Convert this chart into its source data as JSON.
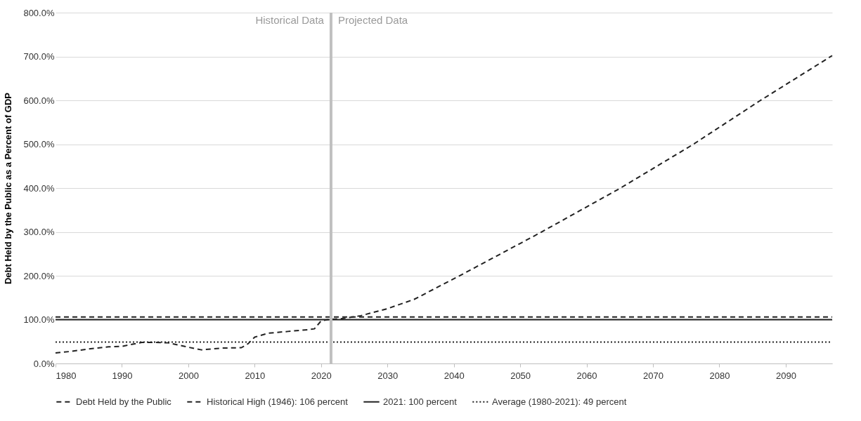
{
  "chart_data": {
    "type": "line",
    "ylabel": "Debt Held by the Public as a Percent of GDP",
    "xlim": [
      1980,
      2097
    ],
    "xticks": [
      1980,
      1990,
      2000,
      2010,
      2020,
      2030,
      2040,
      2050,
      2060,
      2070,
      2080,
      2090
    ],
    "ylim": [
      0,
      800
    ],
    "yticks": [
      {
        "value": 0,
        "label": "0.0%"
      },
      {
        "value": 100,
        "label": "100.0%"
      },
      {
        "value": 200,
        "label": "200.0%"
      },
      {
        "value": 300,
        "label": "300.0%"
      },
      {
        "value": 400,
        "label": "400.0%"
      },
      {
        "value": 500,
        "label": "500.0%"
      },
      {
        "value": 600,
        "label": "600.0%"
      },
      {
        "value": 700,
        "label": "700.0%"
      },
      {
        "value": 800,
        "label": "800.0%"
      }
    ],
    "grid": "y",
    "legend": "bottom",
    "series": [
      {
        "name": "Debt Held by the Public",
        "color": "#222222",
        "line_style": "dashed",
        "x": [
          1980,
          1982,
          1985,
          1988,
          1990,
          1993,
          1995,
          1997,
          2000,
          2002,
          2005,
          2008,
          2009,
          2010,
          2012,
          2015,
          2018,
          2019,
          2020,
          2021,
          2023,
          2026,
          2030,
          2034,
          2041,
          2053,
          2065,
          2076,
          2086,
          2097
        ],
        "values": [
          24,
          27,
          33,
          38,
          39,
          48,
          48,
          47,
          37,
          31,
          35,
          36,
          45,
          60,
          69,
          73,
          77,
          79,
          97,
          100,
          102,
          109,
          125,
          146,
          201,
          298,
          399,
          499,
          598,
          702
        ]
      },
      {
        "name": "Historical High (1946): 106 percent",
        "color": "#222222",
        "line_style": "dashed",
        "x": [
          1980,
          2097
        ],
        "values": [
          106,
          106
        ]
      },
      {
        "name": "2021: 100 percent",
        "color": "#222222",
        "line_style": "solid",
        "x": [
          1980,
          2097
        ],
        "values": [
          100,
          100
        ]
      },
      {
        "name": "Average (1980-2021): 49 percent",
        "color": "#222222",
        "line_style": "dotted",
        "x": [
          1980,
          2097
        ],
        "values": [
          49,
          49
        ]
      }
    ],
    "ref_lines": [
      {
        "axis": "x",
        "value": 2021.5,
        "color": "#c0c0c0"
      }
    ],
    "annotations": [
      "Historical Data",
      "Projected Data"
    ]
  }
}
